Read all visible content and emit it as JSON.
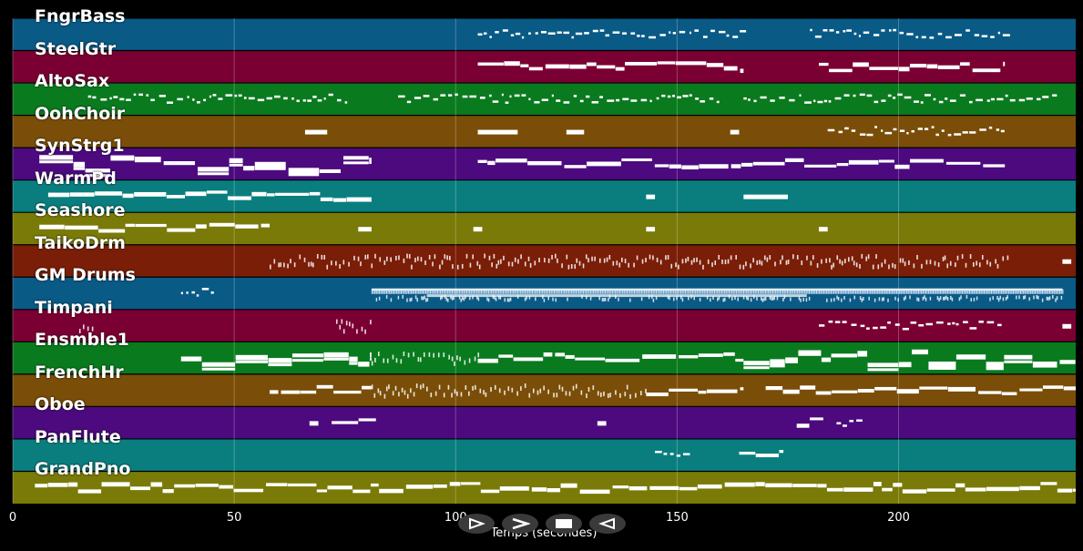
{
  "tracks": [
    {
      "name": "FngrBass",
      "color": "#0a5a86",
      "notes": [
        [
          105,
          165,
          "sparse"
        ],
        [
          180,
          224,
          "sparse"
        ]
      ]
    },
    {
      "name": "SteelGtr",
      "color": "#7a0033",
      "notes": [
        [
          105,
          165,
          "line"
        ],
        [
          182,
          224,
          "line"
        ]
      ]
    },
    {
      "name": "AltoSax",
      "color": "#0a7a1e",
      "notes": [
        [
          17,
          75,
          "sparse"
        ],
        [
          87,
          160,
          "sparse"
        ],
        [
          165,
          236,
          "sparse"
        ]
      ]
    },
    {
      "name": "OohChoir",
      "color": "#7a4e08",
      "notes": [
        [
          66,
          71,
          "block"
        ],
        [
          105,
          114,
          "block"
        ],
        [
          125,
          129,
          "block"
        ],
        [
          162,
          164,
          "block"
        ],
        [
          184,
          224,
          "sparse"
        ]
      ]
    },
    {
      "name": "SynStrg1",
      "color": "#4c0a7e",
      "notes": [
        [
          6,
          81,
          "thick"
        ],
        [
          105,
          224,
          "line"
        ]
      ]
    },
    {
      "name": "WarmPd",
      "color": "#0a7e7e",
      "notes": [
        [
          8,
          81,
          "line"
        ],
        [
          143,
          145,
          "block"
        ],
        [
          165,
          175,
          "block"
        ]
      ]
    },
    {
      "name": "Seashore",
      "color": "#7a7a08",
      "notes": [
        [
          6,
          58,
          "line"
        ],
        [
          78,
          81,
          "block"
        ],
        [
          104,
          106,
          "block"
        ],
        [
          143,
          145,
          "block"
        ],
        [
          182,
          184,
          "block"
        ]
      ]
    },
    {
      "name": "TaikoDrm",
      "color": "#7a1e08",
      "notes": [
        [
          58,
          80,
          "dots"
        ],
        [
          80,
          225,
          "dots"
        ],
        [
          237,
          239,
          "block"
        ]
      ]
    },
    {
      "name": "GM Drums",
      "color": "#0a5a86",
      "notes": [
        [
          38,
          46,
          "sparse"
        ],
        [
          81,
          237,
          "dense"
        ]
      ]
    },
    {
      "name": "Timpani",
      "color": "#7a0033",
      "notes": [
        [
          15,
          18,
          "dots"
        ],
        [
          73,
          81,
          "dots"
        ],
        [
          182,
          224,
          "sparse"
        ],
        [
          237,
          239,
          "block"
        ]
      ]
    },
    {
      "name": "Ensmble1",
      "color": "#0a7a1e",
      "notes": [
        [
          38,
          81,
          "thick"
        ],
        [
          81,
          105,
          "dots"
        ],
        [
          105,
          165,
          "line"
        ],
        [
          165,
          240,
          "thick"
        ]
      ]
    },
    {
      "name": "FrenchHr",
      "color": "#7a4e08",
      "notes": [
        [
          58,
          81,
          "line"
        ],
        [
          81,
          143,
          "dots"
        ],
        [
          143,
          165,
          "line"
        ],
        [
          170,
          240,
          "line"
        ]
      ]
    },
    {
      "name": "Oboe",
      "color": "#4c0a7e",
      "notes": [
        [
          67,
          69,
          "block"
        ],
        [
          72,
          82,
          "line"
        ],
        [
          132,
          134,
          "block"
        ],
        [
          177,
          183,
          "line"
        ],
        [
          186,
          192,
          "sparse"
        ]
      ]
    },
    {
      "name": "PanFlute",
      "color": "#0a7e7e",
      "notes": [
        [
          145,
          153,
          "sparse"
        ],
        [
          164,
          174,
          "line"
        ]
      ]
    },
    {
      "name": "GrandPno",
      "color": "#7a7a08",
      "notes": [
        [
          5,
          240,
          "line"
        ]
      ]
    }
  ],
  "axis": {
    "xlabel": "Temps (secondes)",
    "xmin": 0,
    "xmax": 240,
    "ticks": [
      {
        "value": 0,
        "label": "0"
      },
      {
        "value": 50,
        "label": "50"
      },
      {
        "value": 100,
        "label": "100"
      },
      {
        "value": 150,
        "label": "150"
      },
      {
        "value": 200,
        "label": "200"
      }
    ]
  },
  "controls": [
    {
      "name": "play-outline-icon"
    },
    {
      "name": "forward-chevron-icon"
    },
    {
      "name": "stop-icon"
    },
    {
      "name": "rewind-icon"
    }
  ]
}
